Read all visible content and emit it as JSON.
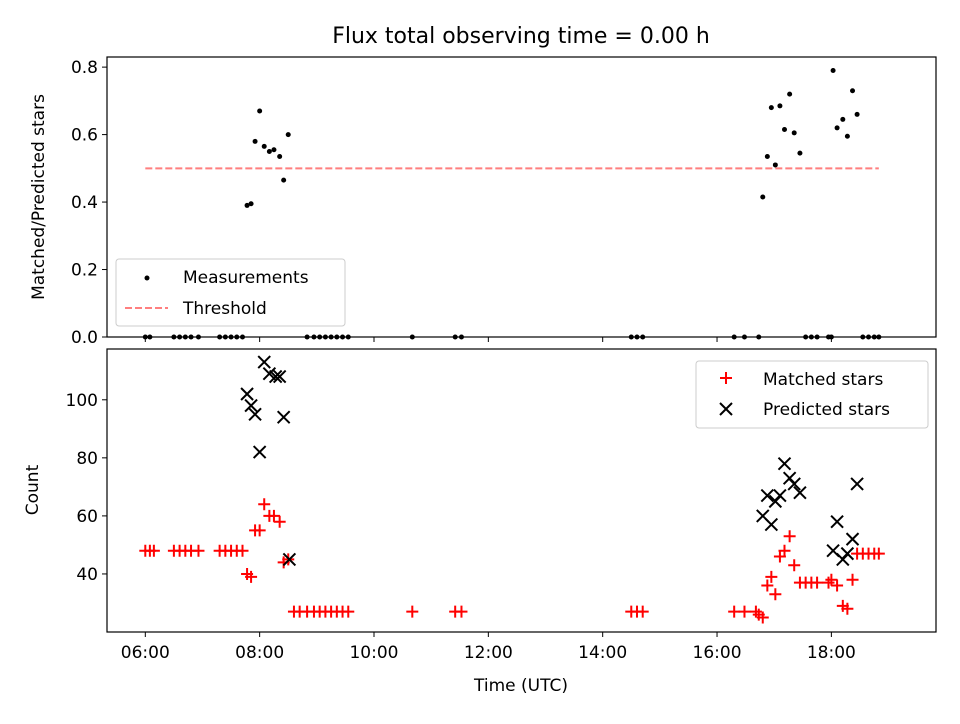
{
  "chart_data": [
    {
      "type": "scatter",
      "title": "Flux total observing time = 0.00 h",
      "xlabel": "",
      "ylabel": "Matched/Predicted stars",
      "xlim": [
        5.33,
        19.83
      ],
      "ylim": [
        0.0,
        0.83
      ],
      "yticks": [
        0.0,
        0.2,
        0.4,
        0.6,
        0.8
      ],
      "ytick_labels": [
        "0.0",
        "0.2",
        "0.4",
        "0.6",
        "0.8"
      ],
      "grid": false,
      "legend": {
        "position": "lower-left",
        "entries": [
          {
            "label": "Measurements",
            "marker": "dot",
            "color": "#000000"
          },
          {
            "label": "Threshold",
            "marker": "dashed-line",
            "color": "#ff7f7f"
          }
        ]
      },
      "threshold": {
        "name": "Threshold",
        "y": 0.5,
        "x_start": 6.0,
        "x_end": 18.83,
        "color": "#ff7f7f"
      },
      "series": [
        {
          "name": "Measurements",
          "color": "#000000",
          "points": [
            [
              6.0,
              0.0
            ],
            [
              6.08,
              0.0
            ],
            [
              6.5,
              0.0
            ],
            [
              6.6,
              0.0
            ],
            [
              6.7,
              0.0
            ],
            [
              6.8,
              0.0
            ],
            [
              6.93,
              0.0
            ],
            [
              7.3,
              0.0
            ],
            [
              7.4,
              0.0
            ],
            [
              7.5,
              0.0
            ],
            [
              7.6,
              0.0
            ],
            [
              7.7,
              0.0
            ],
            [
              7.78,
              0.39
            ],
            [
              7.85,
              0.395
            ],
            [
              7.92,
              0.58
            ],
            [
              8.0,
              0.67
            ],
            [
              8.08,
              0.565
            ],
            [
              8.17,
              0.55
            ],
            [
              8.25,
              0.555
            ],
            [
              8.35,
              0.535
            ],
            [
              8.42,
              0.465
            ],
            [
              8.5,
              0.6
            ],
            [
              8.83,
              0.0
            ],
            [
              8.95,
              0.0
            ],
            [
              9.05,
              0.0
            ],
            [
              9.15,
              0.0
            ],
            [
              9.25,
              0.0
            ],
            [
              9.35,
              0.0
            ],
            [
              9.45,
              0.0
            ],
            [
              9.55,
              0.0
            ],
            [
              10.67,
              0.0
            ],
            [
              11.42,
              0.0
            ],
            [
              11.53,
              0.0
            ],
            [
              14.5,
              0.0
            ],
            [
              14.6,
              0.0
            ],
            [
              14.7,
              0.0
            ],
            [
              16.3,
              0.0
            ],
            [
              16.48,
              0.0
            ],
            [
              16.73,
              0.0
            ],
            [
              16.8,
              0.415
            ],
            [
              16.88,
              0.535
            ],
            [
              16.95,
              0.68
            ],
            [
              17.02,
              0.51
            ],
            [
              17.1,
              0.685
            ],
            [
              17.18,
              0.615
            ],
            [
              17.27,
              0.72
            ],
            [
              17.35,
              0.605
            ],
            [
              17.45,
              0.545
            ],
            [
              17.55,
              0.0
            ],
            [
              17.65,
              0.0
            ],
            [
              17.75,
              0.0
            ],
            [
              17.95,
              0.0
            ],
            [
              18.0,
              0.0
            ],
            [
              18.03,
              0.79
            ],
            [
              18.1,
              0.62
            ],
            [
              18.2,
              0.645
            ],
            [
              18.28,
              0.595
            ],
            [
              18.37,
              0.73
            ],
            [
              18.45,
              0.66
            ],
            [
              18.55,
              0.0
            ],
            [
              18.65,
              0.0
            ],
            [
              18.75,
              0.0
            ],
            [
              18.83,
              0.0
            ]
          ]
        }
      ]
    },
    {
      "type": "scatter",
      "title": "",
      "xlabel": "Time (UTC)",
      "ylabel": "Count",
      "xlim": [
        5.33,
        19.83
      ],
      "ylim": [
        20.0,
        117.5
      ],
      "xticks": [
        6,
        8,
        10,
        12,
        14,
        16,
        18
      ],
      "xtick_labels": [
        "06:00",
        "08:00",
        "10:00",
        "12:00",
        "14:00",
        "16:00",
        "18:00"
      ],
      "yticks": [
        40,
        60,
        80,
        100
      ],
      "ytick_labels": [
        "40",
        "60",
        "80",
        "100"
      ],
      "grid": false,
      "legend": {
        "position": "upper-right",
        "entries": [
          {
            "label": "Matched stars",
            "marker": "plus",
            "color": "#ff0000"
          },
          {
            "label": "Predicted stars",
            "marker": "x",
            "color": "#000000"
          }
        ]
      },
      "series": [
        {
          "name": "Matched stars",
          "marker": "plus",
          "color": "#ff0000",
          "points": [
            [
              6.0,
              48
            ],
            [
              6.08,
              48
            ],
            [
              6.15,
              48
            ],
            [
              6.5,
              48
            ],
            [
              6.6,
              48
            ],
            [
              6.7,
              48
            ],
            [
              6.8,
              48
            ],
            [
              6.93,
              48
            ],
            [
              7.3,
              48
            ],
            [
              7.4,
              48
            ],
            [
              7.5,
              48
            ],
            [
              7.6,
              48
            ],
            [
              7.7,
              48
            ],
            [
              7.78,
              40
            ],
            [
              7.85,
              39
            ],
            [
              7.92,
              55
            ],
            [
              8.0,
              55
            ],
            [
              8.08,
              64
            ],
            [
              8.17,
              60
            ],
            [
              8.25,
              60
            ],
            [
              8.35,
              58
            ],
            [
              8.42,
              44
            ],
            [
              8.5,
              45
            ],
            [
              8.6,
              27
            ],
            [
              8.7,
              27
            ],
            [
              8.83,
              27
            ],
            [
              8.95,
              27
            ],
            [
              9.05,
              27
            ],
            [
              9.15,
              27
            ],
            [
              9.25,
              27
            ],
            [
              9.35,
              27
            ],
            [
              9.45,
              27
            ],
            [
              9.55,
              27
            ],
            [
              10.67,
              27
            ],
            [
              11.42,
              27
            ],
            [
              11.53,
              27
            ],
            [
              14.5,
              27
            ],
            [
              14.6,
              27
            ],
            [
              14.7,
              27
            ],
            [
              16.3,
              27
            ],
            [
              16.48,
              27
            ],
            [
              16.68,
              27
            ],
            [
              16.73,
              26
            ],
            [
              16.8,
              25
            ],
            [
              16.88,
              36
            ],
            [
              16.95,
              39
            ],
            [
              17.02,
              33
            ],
            [
              17.1,
              46
            ],
            [
              17.18,
              48
            ],
            [
              17.27,
              53
            ],
            [
              17.35,
              43
            ],
            [
              17.45,
              37
            ],
            [
              17.55,
              37
            ],
            [
              17.65,
              37
            ],
            [
              17.75,
              37
            ],
            [
              17.95,
              37
            ],
            [
              18.0,
              38
            ],
            [
              18.1,
              36
            ],
            [
              18.2,
              29
            ],
            [
              18.28,
              28
            ],
            [
              18.37,
              38
            ],
            [
              18.45,
              47
            ],
            [
              18.55,
              47
            ],
            [
              18.65,
              47
            ],
            [
              18.75,
              47
            ],
            [
              18.83,
              47
            ]
          ]
        },
        {
          "name": "Predicted stars",
          "marker": "x",
          "color": "#000000",
          "points": [
            [
              7.78,
              102
            ],
            [
              7.85,
              98
            ],
            [
              7.92,
              95
            ],
            [
              8.0,
              82
            ],
            [
              8.08,
              113
            ],
            [
              8.17,
              109
            ],
            [
              8.28,
              108
            ],
            [
              8.35,
              108
            ],
            [
              8.42,
              94
            ],
            [
              8.52,
              45
            ],
            [
              16.8,
              60
            ],
            [
              16.88,
              67
            ],
            [
              16.95,
              57
            ],
            [
              17.02,
              65
            ],
            [
              17.1,
              67
            ],
            [
              17.18,
              78
            ],
            [
              17.27,
              73
            ],
            [
              17.35,
              71
            ],
            [
              17.45,
              68
            ],
            [
              18.03,
              48
            ],
            [
              18.1,
              58
            ],
            [
              18.2,
              45
            ],
            [
              18.28,
              47
            ],
            [
              18.37,
              52
            ],
            [
              18.45,
              71
            ]
          ]
        }
      ]
    }
  ]
}
